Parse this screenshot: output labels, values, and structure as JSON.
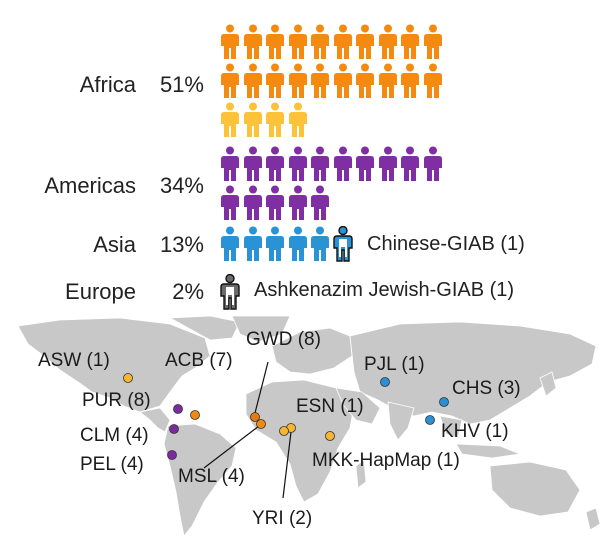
{
  "regions": [
    {
      "name": "Africa",
      "percent": "51%"
    },
    {
      "name": "Americas",
      "percent": "34%"
    },
    {
      "name": "Asia",
      "percent": "13%"
    },
    {
      "name": "Europe",
      "percent": "2%"
    }
  ],
  "icon_counts": {
    "africa_dark": 20,
    "africa_light": 4,
    "americas": 15,
    "asia_filled": 5,
    "asia_outline": 1,
    "europe": 1
  },
  "special_labels": {
    "asia": "Chinese-GIAB (1)",
    "europe": "Ashkenazim Jewish-GIAB (1)"
  },
  "populations": [
    {
      "id": "asw",
      "label": "ASW (1)",
      "color": "#f5b731"
    },
    {
      "id": "acb",
      "label": "ACB (7)",
      "color": "#f08a12"
    },
    {
      "id": "gwd",
      "label": "GWD (8)",
      "color": "#e8790c"
    },
    {
      "id": "pjl",
      "label": "PJL (1)",
      "color": "#2b8fd6"
    },
    {
      "id": "chs",
      "label": "CHS (3)",
      "color": "#2b8fd6"
    },
    {
      "id": "pur",
      "label": "PUR (8)",
      "color": "#7a2b9e"
    },
    {
      "id": "esn",
      "label": "ESN (1)",
      "color": "#f5b731"
    },
    {
      "id": "clm",
      "label": "CLM (4)",
      "color": "#7a2b9e"
    },
    {
      "id": "khv",
      "label": "KHV (1)",
      "color": "#2b8fd6"
    },
    {
      "id": "pel",
      "label": "PEL (4)",
      "color": "#7a2b9e"
    },
    {
      "id": "mkk",
      "label": "MKK-HapMap (1)",
      "color": "#f5b731"
    },
    {
      "id": "msl",
      "label": "MSL (4)",
      "color": "#f08a12"
    },
    {
      "id": "yri",
      "label": "YRI (2)",
      "color": "#f5b731"
    }
  ],
  "colors": {
    "africa_dark": "#f58a12",
    "africa_light": "#fbc23a",
    "americas": "#7f2fa3",
    "asia": "#2a93d5",
    "europe": "#6b6b6b",
    "map": "#c8c8c8"
  }
}
